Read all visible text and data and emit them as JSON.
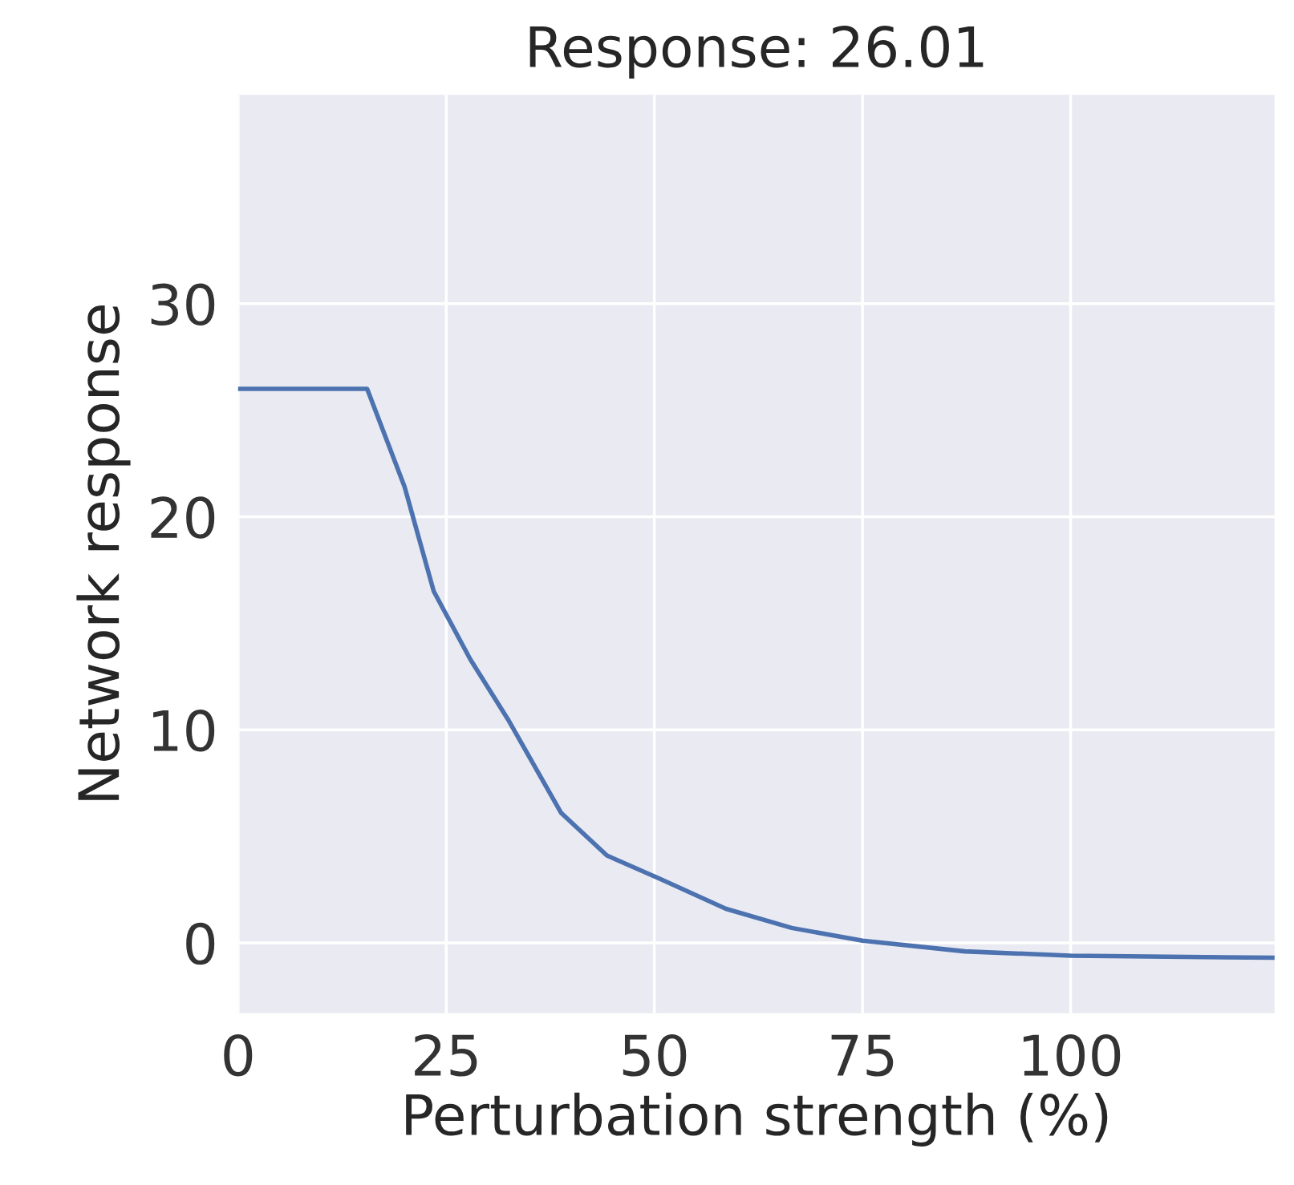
{
  "chart_data": {
    "type": "line",
    "title": "Response: 26.01",
    "xlabel": "Perturbation strength (%)",
    "ylabel": "Network response",
    "x": [
      0,
      15.5,
      20,
      23.5,
      27.9,
      32.4,
      38.8,
      44.3,
      50.7,
      58.6,
      66.5,
      75,
      87.3,
      100,
      124.5
    ],
    "series": [
      {
        "color": "#4c72b0",
        "values": [
          26.0,
          26.0,
          21.4,
          16.5,
          13.3,
          10.5,
          6.1,
          4.1,
          3.0,
          1.6,
          0.7,
          0.1,
          -0.4,
          -0.6,
          -0.7
        ]
      }
    ],
    "xlim": [
      0,
      124.5
    ],
    "ylim": [
      -3.3,
      39.8
    ],
    "xticks": [
      0,
      25,
      50,
      75,
      100
    ],
    "yticks": [
      0,
      10,
      20,
      30
    ],
    "grid": true
  }
}
